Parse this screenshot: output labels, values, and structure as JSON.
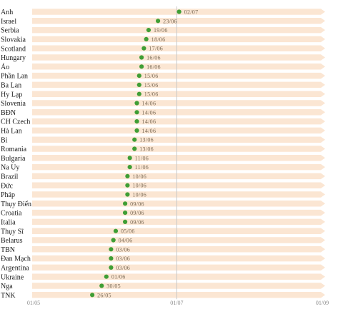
{
  "chart_data": {
    "type": "scatter",
    "categories": [
      "Anh",
      "Israel",
      "Serbia",
      "Slovakia",
      "Scotland",
      "Hungary",
      "Áo",
      "Phần Lan",
      "Ba Lan",
      "Hy Lạp",
      "Slovenia",
      "BĐN",
      "CH Czech",
      "Hà Lan",
      "Bỉ",
      "Romania",
      "Bulgaria",
      "Na Uy",
      "Brazil",
      "Đức",
      "Pháp",
      "Thụy Điển",
      "Croatia",
      "Italia",
      "Thụy Sĩ",
      "Belarus",
      "TBN",
      "Đan Mạch",
      "Argentina",
      "Ukraine",
      "Nga",
      "TNK"
    ],
    "x_values": [
      "2020-07-02",
      "2020-06-23",
      "2020-06-19",
      "2020-06-18",
      "2020-06-17",
      "2020-06-16",
      "2020-06-16",
      "2020-06-15",
      "2020-06-15",
      "2020-06-15",
      "2020-06-14",
      "2020-06-14",
      "2020-06-14",
      "2020-06-14",
      "2020-06-13",
      "2020-06-13",
      "2020-06-11",
      "2020-06-11",
      "2020-06-10",
      "2020-06-10",
      "2020-06-10",
      "2020-06-09",
      "2020-06-09",
      "2020-06-09",
      "2020-06-05",
      "2020-06-04",
      "2020-06-03",
      "2020-06-03",
      "2020-06-03",
      "2020-06-01",
      "2020-05-30",
      "2020-05-26"
    ],
    "value_labels": [
      "02/07",
      "23/06",
      "19/06",
      "18/06",
      "17/06",
      "16/06",
      "16/06",
      "15/06",
      "15/06",
      "15/06",
      "14/06",
      "14/06",
      "14/06",
      "14/06",
      "13/06",
      "13/06",
      "11/06",
      "11/06",
      "10/06",
      "10/06",
      "10/06",
      "09/06",
      "09/06",
      "09/06",
      "05/06",
      "04/06",
      "03/06",
      "03/06",
      "03/06",
      "01/06",
      "30/05",
      "26/05"
    ],
    "x_range": [
      "2020-05-01",
      "2020-09-01"
    ],
    "x_ticks": [
      {
        "date": "2020-05-01",
        "label": "01/05"
      },
      {
        "date": "2020-07-01",
        "label": "01/07"
      },
      {
        "date": "2020-09-01",
        "label": "01/09"
      }
    ],
    "reference_line": "2020-07-01",
    "colors": {
      "point": "#3f9e35",
      "band": "#fbe6d3",
      "reference_line": "#c8c8c8"
    }
  }
}
